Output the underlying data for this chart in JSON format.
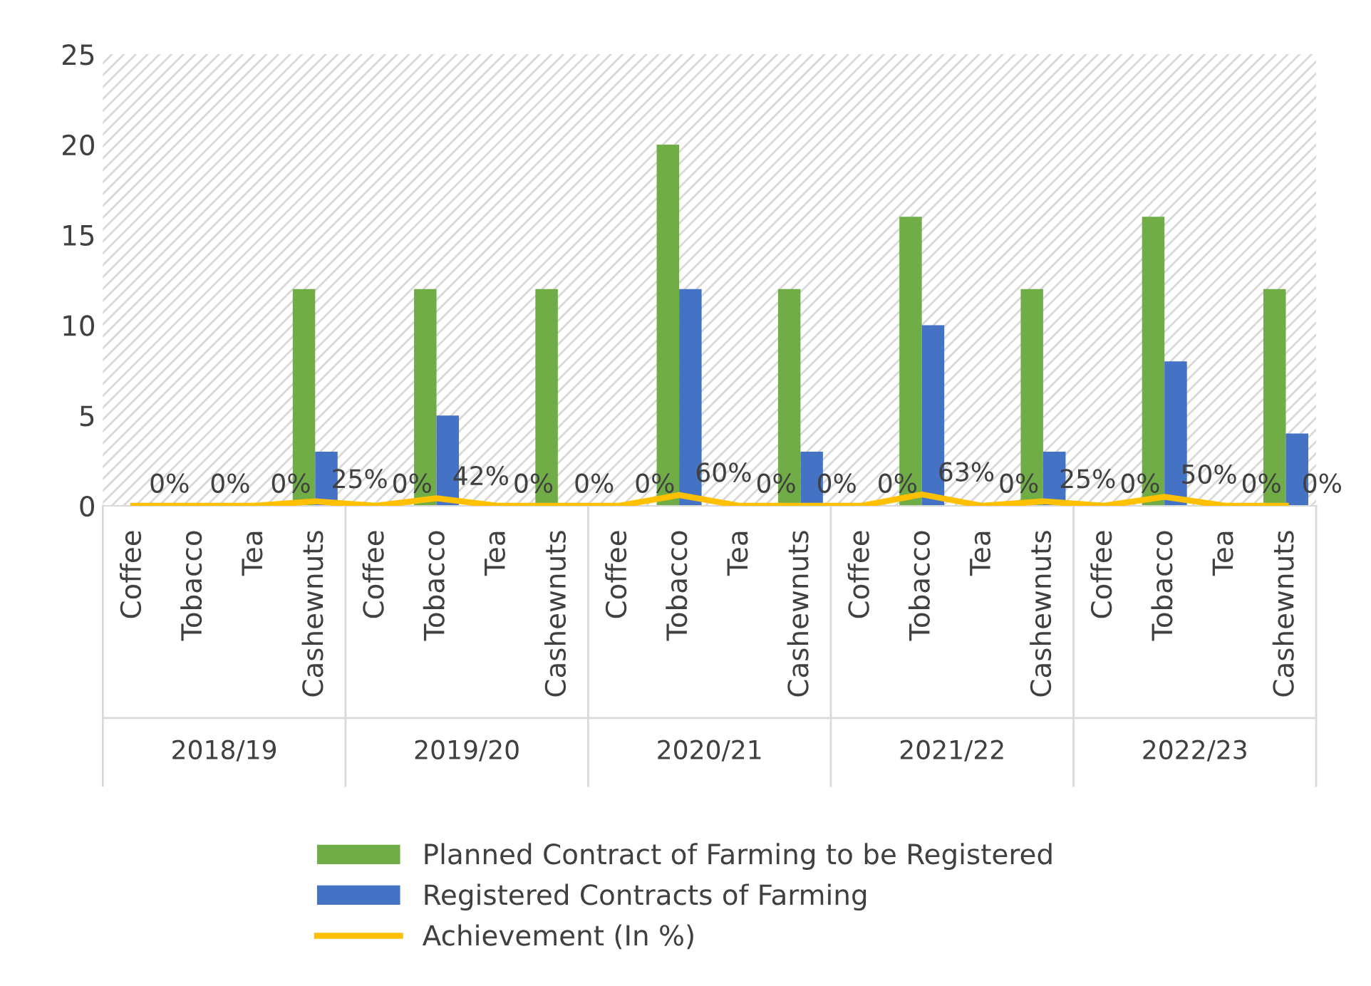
{
  "chart_data": {
    "type": "bar",
    "categories": [
      "Coffee",
      "Tobacco",
      "Tea",
      "Cashewnuts",
      "Coffee",
      "Tobacco",
      "Tea",
      "Cashewnuts",
      "Coffee",
      "Tobacco",
      "Tea",
      "Cashewnuts",
      "Coffee",
      "Tobacco",
      "Tea",
      "Cashewnuts",
      "Coffee",
      "Tobacco",
      "Tea",
      "Cashewnuts"
    ],
    "series": [
      {
        "name": "Planned Contract of Farming to be Registered",
        "color": "#70ad47",
        "values": [
          0,
          0,
          0,
          12,
          0,
          12,
          0,
          12,
          0,
          20,
          0,
          12,
          0,
          16,
          0,
          12,
          0,
          16,
          0,
          12
        ]
      },
      {
        "name": "Registered Contracts of Farming",
        "color": "#4472c4",
        "values": [
          0,
          0,
          0,
          3,
          0,
          5,
          0,
          0,
          0,
          12,
          0,
          3,
          0,
          10,
          0,
          3,
          0,
          8,
          0,
          4
        ]
      },
      {
        "name": "Achievement (In %)",
        "type": "line",
        "color": "#ffc000",
        "values": [
          0,
          0,
          0,
          0.25,
          0,
          0.42,
          0,
          0,
          0,
          0.6,
          0,
          0,
          0,
          0.63,
          0,
          0.25,
          0,
          0.5,
          0,
          0
        ],
        "value_labels": [
          "0%",
          "0%",
          "0%",
          "25%",
          "0%",
          "42%",
          "0%",
          "0%",
          "0%",
          "60%",
          "0%",
          "0%",
          "0%",
          "63%",
          "0%",
          "25%",
          "0%",
          "50%",
          "0%",
          "0%"
        ]
      }
    ],
    "annotations": [
      "2018/19",
      "2019/20",
      "2020/21",
      "2021/22",
      "2022/23"
    ],
    "ylim": [
      0,
      25
    ],
    "yticks": [
      0,
      5,
      10,
      15,
      20,
      25
    ],
    "grid": false,
    "legend": "bottom",
    "marker": "none",
    "line_style": "solid"
  }
}
